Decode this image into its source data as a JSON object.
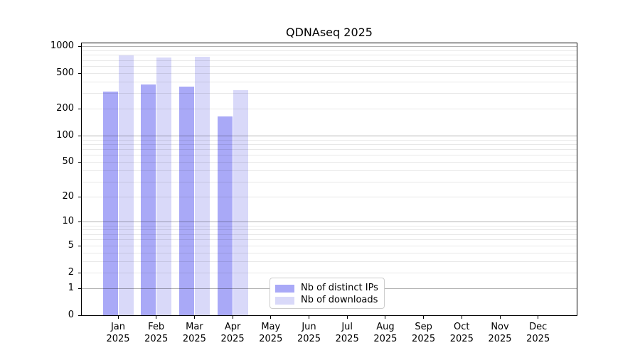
{
  "title": "QDNAseq 2025",
  "chart_data": {
    "type": "bar",
    "title": "QDNAseq 2025",
    "categories": [
      "Jan",
      "Feb",
      "Mar",
      "Apr",
      "May",
      "Jun",
      "Jul",
      "Aug",
      "Sep",
      "Oct",
      "Nov",
      "Dec"
    ],
    "x_sublabel": "2025",
    "series": [
      {
        "name": "Nb of distinct IPs",
        "color": "#a9a9f7",
        "values": [
          310,
          372,
          353,
          163,
          0,
          0,
          0,
          0,
          0,
          0,
          0,
          0
        ]
      },
      {
        "name": "Nb of downloads",
        "color": "#d9d9f9",
        "values": [
          790,
          750,
          760,
          325,
          0,
          0,
          0,
          0,
          0,
          0,
          0,
          0
        ]
      }
    ],
    "scale": "log10(1+x)",
    "ylim": [
      0,
      1000
    ],
    "y_tick_values": [
      1000,
      500,
      200,
      100,
      50,
      20,
      10,
      5,
      2,
      1,
      0
    ],
    "y_tick_labels": [
      "1000",
      "500",
      "200",
      "100",
      "50",
      "20",
      "10",
      "5",
      "2",
      "1",
      "0"
    ],
    "grid": "horizontal; major gray lines at 1,10,100,1000; faint minor lines at 2-9 multiples; drawn over bars",
    "legend_position": "inside bottom-center"
  }
}
